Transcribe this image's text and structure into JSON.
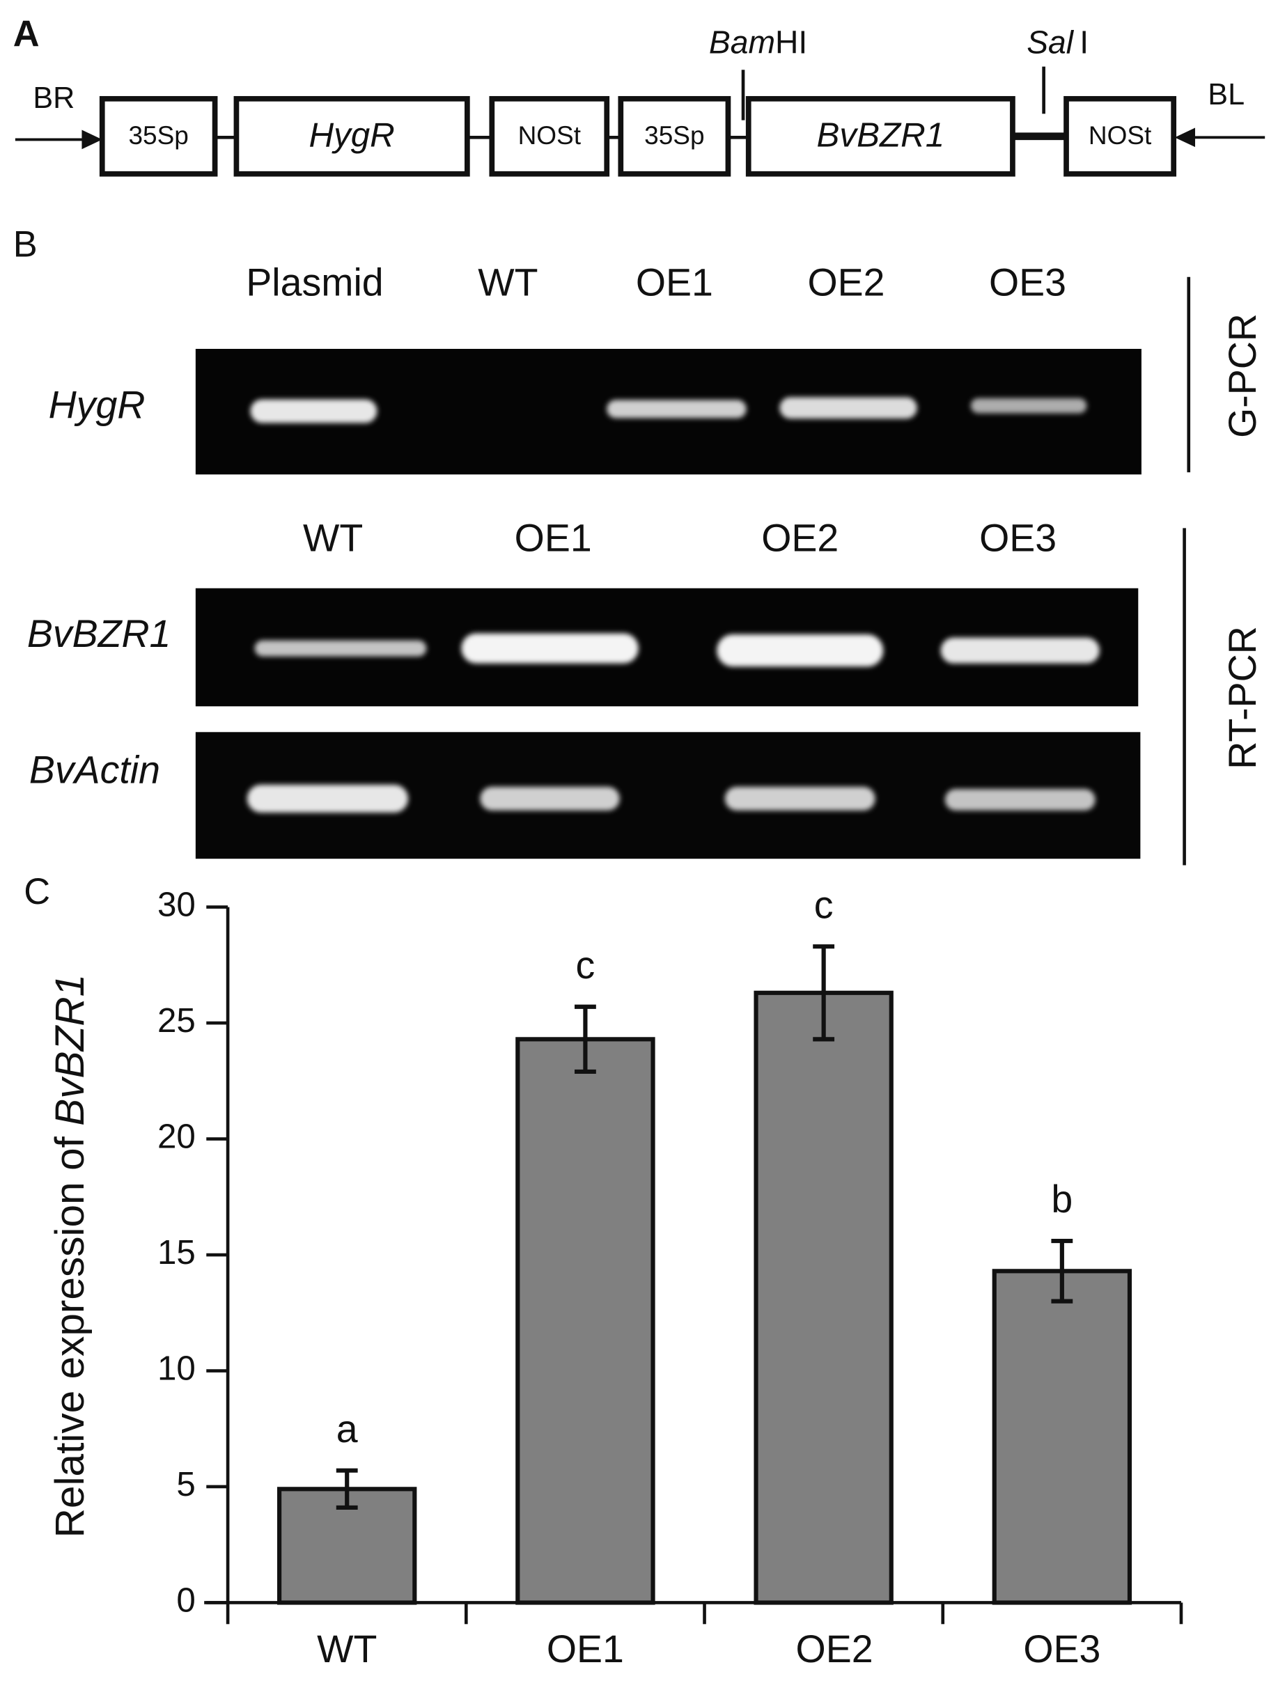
{
  "panel_a": {
    "label": "A",
    "left_primer": "BR",
    "right_primer": "BL",
    "elements": [
      "35Sp",
      "HygR",
      "NOSt",
      "35Sp",
      "BvBZR1",
      "NOSt"
    ],
    "sites": [
      {
        "italic": "Bam",
        "plain": "HI"
      },
      {
        "italic": "Sal",
        "plain": "I"
      }
    ]
  },
  "panel_b": {
    "label": "B",
    "gpcr": {
      "lanes": [
        "Plasmid",
        "WT",
        "OE1",
        "OE2",
        "OE3"
      ],
      "genes": [
        "HygR"
      ],
      "side_label": "G-PCR"
    },
    "rtpcr": {
      "lanes": [
        "WT",
        "OE1",
        "OE2",
        "OE3"
      ],
      "genes": [
        "BvBZR1",
        "BvActin"
      ],
      "side_label": "RT-PCR"
    }
  },
  "chart_data": {
    "type": "bar",
    "panel_label": "C",
    "ylabel": "Relative expression of",
    "ylabel_gene": "BvBZR1",
    "categories": [
      "WT",
      "OE1",
      "OE2",
      "OE3"
    ],
    "values": [
      4.9,
      24.3,
      26.3,
      14.3
    ],
    "errors": [
      0.8,
      1.4,
      2.0,
      1.3
    ],
    "annotations": [
      "a",
      "c",
      "c",
      "b"
    ],
    "color": "#808080",
    "ylim": [
      0,
      30
    ],
    "yticks": [
      0,
      5,
      10,
      15,
      20,
      25,
      30
    ]
  }
}
